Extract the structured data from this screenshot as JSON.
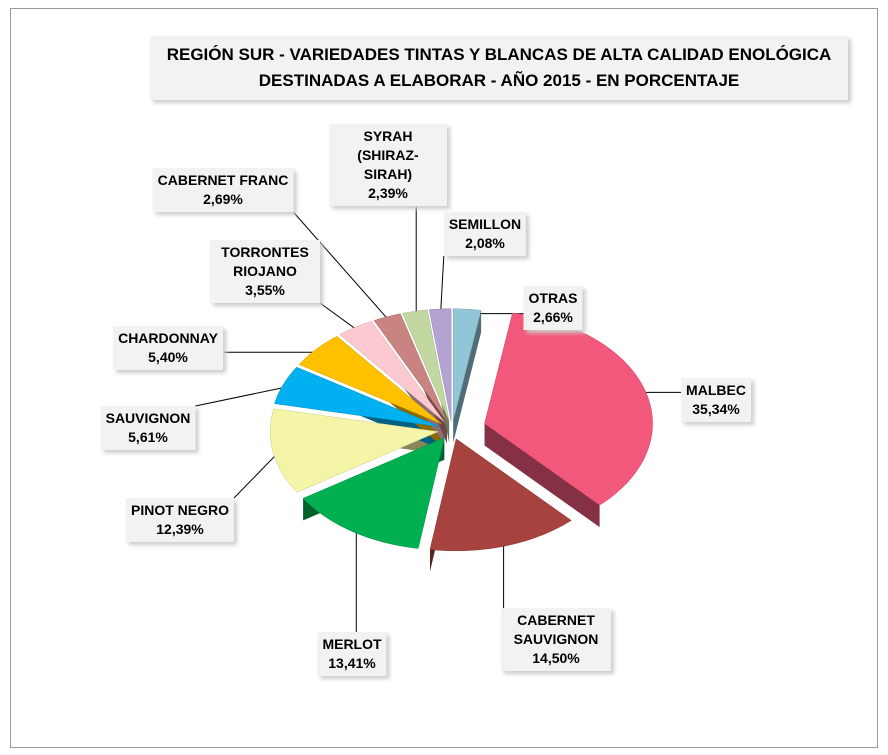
{
  "chart_data": {
    "type": "pie",
    "title": "REGIÓN SUR - VARIEDADES TINTAS Y BLANCAS DE ALTA CALIDAD ENOLÓGICA DESTINADAS A ELABORAR - AÑO 2015 - EN PORCENTAJE",
    "categories": [
      "OTRAS",
      "MALBEC",
      "CABERNET SAUVIGNON",
      "MERLOT",
      "PINOT NEGRO",
      "SAUVIGNON",
      "CHARDONNAY",
      "TORRONTES RIOJANO",
      "CABERNET FRANC",
      "SYRAH (SHIRAZ-SIRAH)",
      "SEMILLON"
    ],
    "values": [
      2.66,
      35.34,
      14.5,
      13.41,
      12.39,
      5.61,
      5.4,
      3.55,
      2.69,
      2.39,
      2.08
    ],
    "value_labels": [
      "2,66%",
      "35,34%",
      "14,50%",
      "13,41%",
      "12,39%",
      "5,61%",
      "5,40%",
      "3,55%",
      "2,69%",
      "2,39%",
      "2,08%"
    ],
    "colors": [
      "#92c5d6",
      "#f2587b",
      "#a6433f",
      "#00b050",
      "#f4f5a6",
      "#00b0f0",
      "#ffc000",
      "#fdc9d0",
      "#c98482",
      "#c3d8a1",
      "#b3a3d3"
    ]
  }
}
